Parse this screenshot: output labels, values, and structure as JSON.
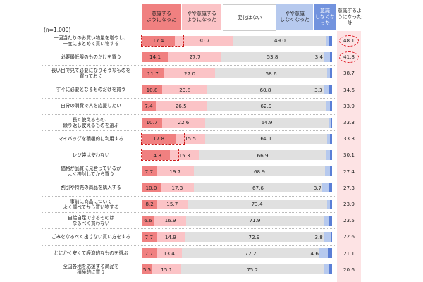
{
  "chart_data": {
    "type": "bar",
    "orientation": "horizontal",
    "stacked": true,
    "sample_note": "(n=1,000)",
    "total_header": "意識するようになった計",
    "series": [
      {
        "name": "意識する\nようになった",
        "color": "#f08080",
        "header_bg": "#f08080"
      },
      {
        "name": "やや意識する\nようになった",
        "color": "#fbc3c6",
        "header_bg": "#fbc3c6"
      },
      {
        "name": "変化はない",
        "color": "#e0e0e0",
        "header_bg": "#ffffff"
      },
      {
        "name": "やや意識\nしなくなった",
        "color": "#b6c9ee",
        "header_bg": "#b6c9ee"
      },
      {
        "name": "意識\nしなくなった",
        "color": "#5b7fd6",
        "header_bg": "#7293de"
      }
    ],
    "rows": [
      {
        "label": "一回当たりのお買い物量を増やし、\n一度にまとめて買い物する",
        "values": [
          17.4,
          30.7,
          49.0,
          1.5,
          1.4
        ],
        "shown": [
          "17.4",
          "30.7",
          "49.0",
          "",
          ""
        ],
        "total": "48.1",
        "highlight_first": true,
        "highlight_total": true
      },
      {
        "label": "必要最低限のものだけを買う",
        "values": [
          14.1,
          27.7,
          53.8,
          3.4,
          1.0
        ],
        "shown": [
          "14.1",
          "27.7",
          "53.8",
          "3.4",
          ""
        ],
        "total": "41.8",
        "highlight_first": false,
        "highlight_total": true
      },
      {
        "label": "長い目で見て必要になりそうなものを\n買っておく",
        "values": [
          11.7,
          27.0,
          58.6,
          1.7,
          1.0
        ],
        "shown": [
          "11.7",
          "27.0",
          "58.6",
          "",
          ""
        ],
        "total": "38.7",
        "highlight_first": false,
        "highlight_total": false
      },
      {
        "label": "すぐに必要となるものだけを買う",
        "values": [
          10.8,
          23.8,
          60.8,
          3.3,
          1.3
        ],
        "shown": [
          "10.8",
          "23.8",
          "60.8",
          "3.3",
          ""
        ],
        "total": "34.6",
        "highlight_first": false,
        "highlight_total": false
      },
      {
        "label": "自分の消費で人を応援したい",
        "values": [
          7.4,
          26.5,
          62.9,
          2.2,
          1.0
        ],
        "shown": [
          "7.4",
          "26.5",
          "62.9",
          "",
          ""
        ],
        "total": "33.9",
        "highlight_first": false,
        "highlight_total": false
      },
      {
        "label": "長く使えるもの、\n繰り返し使えるものを選ぶ",
        "values": [
          10.7,
          22.6,
          64.9,
          1.0,
          0.8
        ],
        "shown": [
          "10.7",
          "22.6",
          "64.9",
          "",
          ""
        ],
        "total": "33.3",
        "highlight_first": false,
        "highlight_total": false
      },
      {
        "label": "マイバッグを積極的に利用する",
        "values": [
          17.8,
          15.5,
          64.1,
          1.5,
          1.1
        ],
        "shown": [
          "17.8",
          "15.5",
          "64.1",
          "",
          ""
        ],
        "total": "33.3",
        "highlight_first": true,
        "highlight_total": false
      },
      {
        "label": "レジ袋は使わない",
        "values": [
          14.8,
          15.3,
          66.9,
          1.9,
          1.1
        ],
        "shown": [
          "14.8",
          "15.3",
          "66.9",
          "",
          ""
        ],
        "total": "30.1",
        "highlight_first": true,
        "highlight_total": false
      },
      {
        "label": "価格が品質に見合っているか\nよく検討してから買う",
        "values": [
          7.7,
          19.7,
          68.9,
          2.5,
          1.2
        ],
        "shown": [
          "7.7",
          "19.7",
          "68.9",
          "",
          ""
        ],
        "total": "27.4",
        "highlight_first": false,
        "highlight_total": false
      },
      {
        "label": "割引や特売の商品を購入する",
        "values": [
          10.0,
          17.3,
          67.6,
          3.7,
          1.4
        ],
        "shown": [
          "10.0",
          "17.3",
          "67.6",
          "3.7",
          ""
        ],
        "total": "27.3",
        "highlight_first": false,
        "highlight_total": false
      },
      {
        "label": "事前に商品について\nよく調べてから買い物する",
        "values": [
          8.2,
          15.7,
          73.4,
          1.7,
          1.0
        ],
        "shown": [
          "8.2",
          "15.7",
          "73.4",
          "",
          ""
        ],
        "total": "23.9",
        "highlight_first": false,
        "highlight_total": false
      },
      {
        "label": "自給自足できるものは\nなるべく買わない",
        "values": [
          6.6,
          16.9,
          71.9,
          2.8,
          1.8
        ],
        "shown": [
          "6.6",
          "16.9",
          "71.9",
          "",
          ""
        ],
        "total": "23.5",
        "highlight_first": false,
        "highlight_total": false
      },
      {
        "label": "ごみをなるべく出さない買い方をする",
        "values": [
          7.7,
          14.9,
          72.9,
          3.8,
          0.7
        ],
        "shown": [
          "7.7",
          "14.9",
          "72.9",
          "3.8",
          ""
        ],
        "total": "22.6",
        "highlight_first": false,
        "highlight_total": false
      },
      {
        "label": "とにかく安くて経済的なものを選ぶ",
        "values": [
          7.7,
          13.4,
          72.2,
          4.6,
          2.1
        ],
        "shown": [
          "7.7",
          "13.4",
          "72.2",
          "4.6",
          ""
        ],
        "total": "21.1",
        "highlight_first": false,
        "highlight_total": false
      },
      {
        "label": "全国各地を応援する商品を\n積極的に買う",
        "values": [
          5.5,
          15.1,
          75.2,
          2.9,
          1.3
        ],
        "shown": [
          "5.5",
          "15.1",
          "75.2",
          "",
          ""
        ],
        "total": "20.6",
        "highlight_first": false,
        "highlight_total": false
      }
    ],
    "xlim": [
      0,
      100
    ]
  }
}
